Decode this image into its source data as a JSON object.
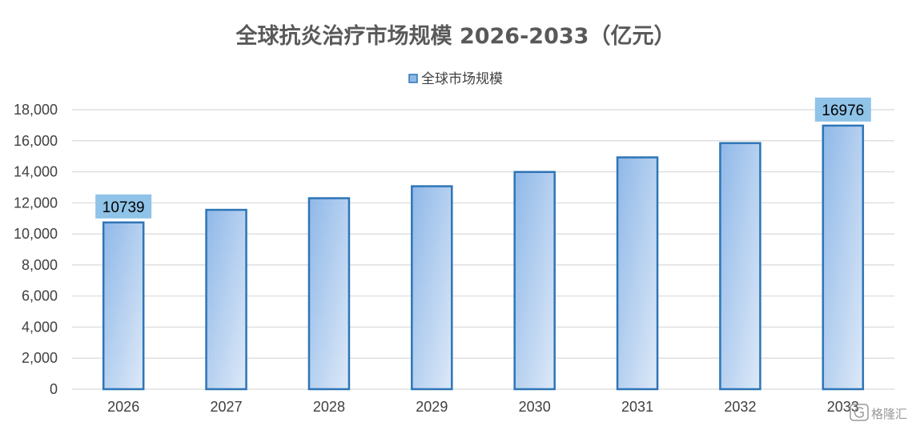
{
  "chart_data": {
    "type": "bar",
    "title": "全球抗炎治疗市场规模 2026-2033（亿元）",
    "legend": {
      "position": "top",
      "entries": [
        "全球市场规模"
      ]
    },
    "categories": [
      "2026",
      "2027",
      "2028",
      "2029",
      "2030",
      "2031",
      "2032",
      "2033"
    ],
    "series": [
      {
        "name": "全球市场规模",
        "values": [
          10739,
          11550,
          12300,
          13070,
          13990,
          14930,
          15850,
          16976
        ]
      }
    ],
    "data_labels": [
      {
        "index": 0,
        "text": "10739"
      },
      {
        "index": 7,
        "text": "16976"
      }
    ],
    "ylim": [
      0,
      18000
    ],
    "yticks": [
      0,
      2000,
      4000,
      6000,
      8000,
      10000,
      12000,
      14000,
      16000,
      18000
    ],
    "ytick_labels": [
      "0",
      "2,000",
      "4,000",
      "6,000",
      "8,000",
      "10,000",
      "12,000",
      "14,000",
      "16,000",
      "18,000"
    ],
    "grid": true,
    "colors": {
      "bar_fill_top": "#8fb8e8",
      "bar_fill_bottom": "#dde9f8",
      "bar_stroke": "#2e75b6",
      "label_box": "#8fc3e8",
      "grid": "#d9d9d9"
    }
  },
  "watermark": {
    "text": "格隆汇",
    "icon": "g-logo-icon"
  }
}
